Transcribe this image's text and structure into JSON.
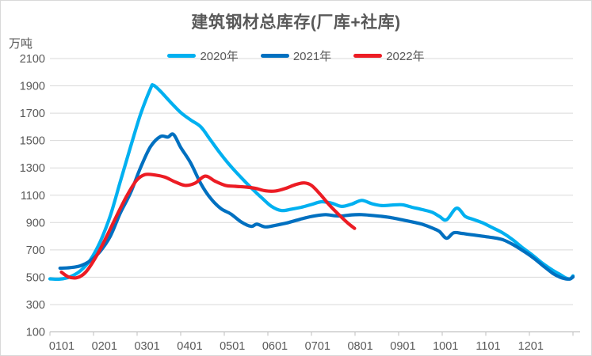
{
  "chart_data": {
    "type": "line",
    "title": "建筑钢材总库存(厂库+社库)",
    "unit_label": "万吨",
    "x_encoding": "day_of_year",
    "grid": true,
    "legend_position": "top-center",
    "colors": {
      "grid": "#d9d9d9",
      "axis": "#bfbfbf",
      "text": "#595959"
    },
    "y_axis": {
      "min": 100,
      "max": 2100,
      "step": 200,
      "tick_labels": [
        "2100",
        "1900",
        "1700",
        "1500",
        "1300",
        "1100",
        "900",
        "700",
        "500",
        "300",
        "100"
      ]
    },
    "x_axis": {
      "tick_labels": [
        "0101",
        "0201",
        "0301",
        "0401",
        "0501",
        "0601",
        "0701",
        "0801",
        "0901",
        "1001",
        "1101",
        "1201"
      ]
    },
    "series": [
      {
        "name": "2020年",
        "color": "#00B0F0",
        "points": [
          [
            1,
            488
          ],
          [
            8,
            486
          ],
          [
            15,
            503
          ],
          [
            22,
            545
          ],
          [
            29,
            625
          ],
          [
            36,
            760
          ],
          [
            43,
            950
          ],
          [
            50,
            1200
          ],
          [
            57,
            1450
          ],
          [
            64,
            1690
          ],
          [
            71,
            1880
          ],
          [
            73,
            1905
          ],
          [
            78,
            1860
          ],
          [
            85,
            1780
          ],
          [
            92,
            1705
          ],
          [
            99,
            1650
          ],
          [
            106,
            1600
          ],
          [
            113,
            1500
          ],
          [
            120,
            1400
          ],
          [
            127,
            1310
          ],
          [
            134,
            1230
          ],
          [
            141,
            1155
          ],
          [
            148,
            1085
          ],
          [
            155,
            1020
          ],
          [
            162,
            988
          ],
          [
            169,
            998
          ],
          [
            176,
            1012
          ],
          [
            183,
            1032
          ],
          [
            190,
            1052
          ],
          [
            197,
            1042
          ],
          [
            204,
            1018
          ],
          [
            211,
            1035
          ],
          [
            218,
            1062
          ],
          [
            225,
            1038
          ],
          [
            232,
            1024
          ],
          [
            239,
            1028
          ],
          [
            246,
            1030
          ],
          [
            253,
            1012
          ],
          [
            260,
            995
          ],
          [
            267,
            975
          ],
          [
            272,
            945
          ],
          [
            277,
            920
          ],
          [
            284,
            1005
          ],
          [
            290,
            945
          ],
          [
            295,
            925
          ],
          [
            302,
            898
          ],
          [
            309,
            862
          ],
          [
            316,
            825
          ],
          [
            323,
            775
          ],
          [
            330,
            715
          ],
          [
            337,
            660
          ],
          [
            344,
            600
          ],
          [
            351,
            550
          ],
          [
            356,
            520
          ],
          [
            360,
            495
          ],
          [
            363,
            488
          ],
          [
            365,
            510
          ]
        ]
      },
      {
        "name": "2021年",
        "color": "#0070C0",
        "points": [
          [
            8,
            566
          ],
          [
            15,
            570
          ],
          [
            22,
            583
          ],
          [
            29,
            620
          ],
          [
            36,
            690
          ],
          [
            43,
            800
          ],
          [
            50,
            970
          ],
          [
            57,
            1115
          ],
          [
            64,
            1300
          ],
          [
            71,
            1455
          ],
          [
            78,
            1530
          ],
          [
            83,
            1525
          ],
          [
            87,
            1545
          ],
          [
            92,
            1450
          ],
          [
            99,
            1335
          ],
          [
            106,
            1185
          ],
          [
            113,
            1075
          ],
          [
            120,
            1002
          ],
          [
            127,
            962
          ],
          [
            134,
            905
          ],
          [
            141,
            872
          ],
          [
            145,
            888
          ],
          [
            151,
            868
          ],
          [
            158,
            880
          ],
          [
            165,
            895
          ],
          [
            172,
            915
          ],
          [
            179,
            935
          ],
          [
            186,
            950
          ],
          [
            193,
            958
          ],
          [
            199,
            950
          ],
          [
            204,
            948
          ],
          [
            211,
            956
          ],
          [
            218,
            958
          ],
          [
            225,
            952
          ],
          [
            232,
            945
          ],
          [
            239,
            935
          ],
          [
            246,
            920
          ],
          [
            253,
            905
          ],
          [
            260,
            888
          ],
          [
            267,
            860
          ],
          [
            272,
            835
          ],
          [
            277,
            785
          ],
          [
            282,
            825
          ],
          [
            288,
            820
          ],
          [
            295,
            810
          ],
          [
            302,
            800
          ],
          [
            309,
            790
          ],
          [
            316,
            775
          ],
          [
            323,
            740
          ],
          [
            330,
            695
          ],
          [
            337,
            645
          ],
          [
            344,
            585
          ],
          [
            351,
            528
          ],
          [
            356,
            500
          ],
          [
            360,
            488
          ],
          [
            363,
            487
          ],
          [
            365,
            502
          ]
        ]
      },
      {
        "name": "2022年",
        "color": "#EC1C24",
        "points": [
          [
            9,
            537
          ],
          [
            14,
            502
          ],
          [
            20,
            497
          ],
          [
            26,
            538
          ],
          [
            33,
            648
          ],
          [
            40,
            788
          ],
          [
            47,
            940
          ],
          [
            54,
            1085
          ],
          [
            61,
            1205
          ],
          [
            67,
            1250
          ],
          [
            74,
            1248
          ],
          [
            81,
            1232
          ],
          [
            88,
            1198
          ],
          [
            95,
            1172
          ],
          [
            102,
            1188
          ],
          [
            109,
            1240
          ],
          [
            116,
            1202
          ],
          [
            123,
            1172
          ],
          [
            130,
            1165
          ],
          [
            137,
            1160
          ],
          [
            144,
            1150
          ],
          [
            151,
            1132
          ],
          [
            158,
            1131
          ],
          [
            165,
            1150
          ],
          [
            172,
            1178
          ],
          [
            178,
            1190
          ],
          [
            183,
            1172
          ],
          [
            189,
            1108
          ],
          [
            196,
            1022
          ],
          [
            203,
            948
          ],
          [
            209,
            890
          ],
          [
            213,
            857
          ]
        ]
      }
    ]
  }
}
